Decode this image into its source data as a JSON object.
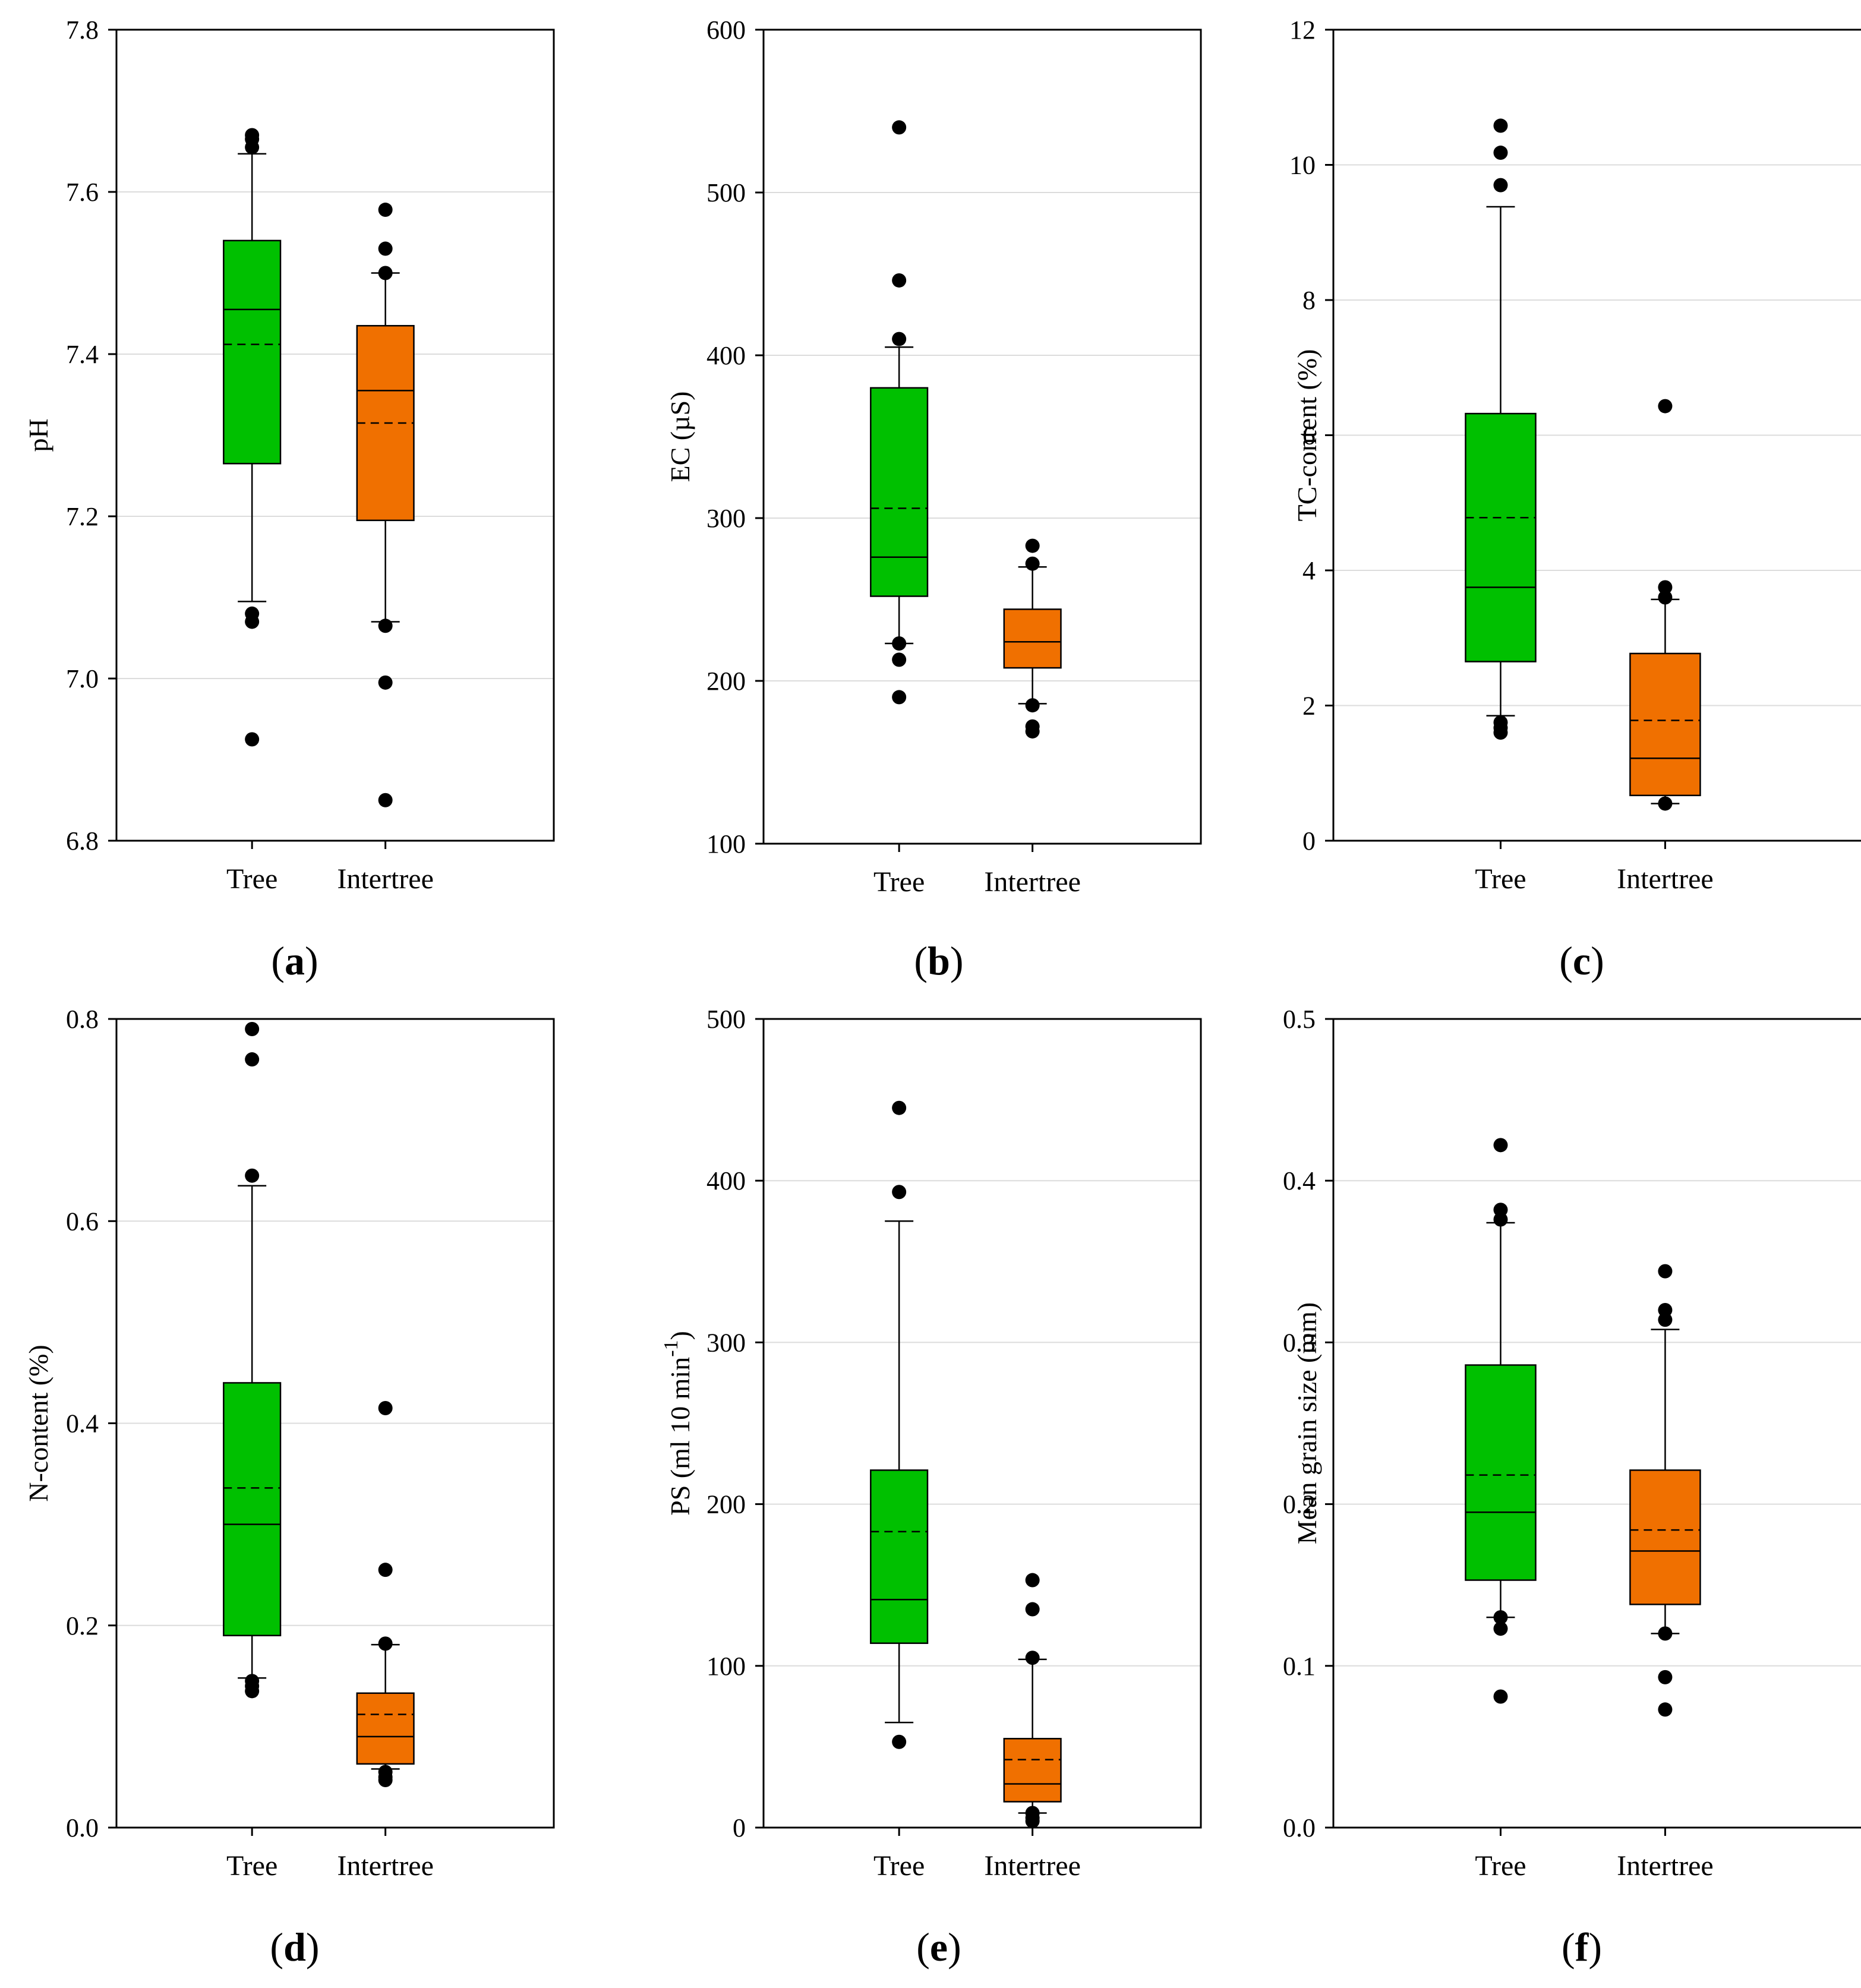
{
  "figure": {
    "colors": {
      "tree": "#00c000",
      "intertree": "#f07000",
      "gridline": "#dcdcdc",
      "frame": "#000000"
    },
    "categories": [
      "Tree",
      "Intertree"
    ]
  },
  "chart_data": [
    {
      "type": "box",
      "panel": "a",
      "panel_label": "(a)",
      "ylabel": "pH",
      "ylim": [
        6.8,
        7.8
      ],
      "yticks": [
        6.8,
        7.0,
        7.2,
        7.4,
        7.6,
        7.8
      ],
      "ytick_labels": [
        "6.8",
        "7.0",
        "7.2",
        "7.4",
        "7.6",
        "7.8"
      ],
      "series": [
        {
          "name": "Tree",
          "q1": 7.265,
          "median": 7.455,
          "mean": 7.412,
          "q3": 7.54,
          "whisker_low": 7.095,
          "whisker_high": 7.647,
          "outliers": [
            7.67,
            7.665,
            7.655,
            7.08,
            7.07,
            6.925
          ]
        },
        {
          "name": "Intertree",
          "q1": 7.195,
          "median": 7.355,
          "mean": 7.315,
          "q3": 7.435,
          "whisker_low": 7.07,
          "whisker_high": 7.5,
          "outliers": [
            7.578,
            7.53,
            7.5,
            7.065,
            6.995,
            6.85
          ]
        }
      ]
    },
    {
      "type": "box",
      "panel": "b",
      "panel_label": "(b)",
      "ylabel": "EC (µS)",
      "ylim": [
        100,
        600
      ],
      "yticks": [
        100,
        200,
        300,
        400,
        500,
        600
      ],
      "ytick_labels": [
        "100",
        "200",
        "300",
        "400",
        "500",
        "600"
      ],
      "series": [
        {
          "name": "Tree",
          "q1": 252,
          "median": 276,
          "mean": 306,
          "q3": 380,
          "whisker_low": 223,
          "whisker_high": 405,
          "outliers": [
            540,
            446,
            410,
            223,
            213,
            190
          ]
        },
        {
          "name": "Intertree",
          "q1": 208,
          "median": 224,
          "mean": 224,
          "q3": 244,
          "whisker_low": 186,
          "whisker_high": 270,
          "outliers": [
            283,
            272,
            185,
            172,
            169
          ]
        }
      ]
    },
    {
      "type": "box",
      "panel": "c",
      "panel_label": "(c)",
      "ylabel": "TC-content (%)",
      "ylim": [
        0,
        12
      ],
      "yticks": [
        0,
        2,
        4,
        6,
        8,
        10,
        12
      ],
      "ytick_labels": [
        "0",
        "2",
        "4",
        "6",
        "8",
        "10",
        "12"
      ],
      "series": [
        {
          "name": "Tree",
          "q1": 2.65,
          "median": 3.75,
          "mean": 4.78,
          "q3": 6.32,
          "whisker_low": 1.85,
          "whisker_high": 9.38,
          "outliers": [
            10.58,
            10.18,
            9.7,
            1.75,
            1.67,
            1.6
          ]
        },
        {
          "name": "Intertree",
          "q1": 0.67,
          "median": 1.22,
          "mean": 1.78,
          "q3": 2.77,
          "whisker_low": 0.55,
          "whisker_high": 3.57,
          "outliers": [
            6.43,
            3.75,
            3.6,
            0.55
          ]
        }
      ]
    },
    {
      "type": "box",
      "panel": "d",
      "panel_label": "(d)",
      "ylabel": "N-content (%)",
      "ylim": [
        0.0,
        0.8
      ],
      "yticks": [
        0.0,
        0.2,
        0.4,
        0.6,
        0.8
      ],
      "ytick_labels": [
        "0.0",
        "0.2",
        "0.4",
        "0.6",
        "0.8"
      ],
      "series": [
        {
          "name": "Tree",
          "q1": 0.19,
          "median": 0.3,
          "mean": 0.336,
          "q3": 0.44,
          "whisker_low": 0.148,
          "whisker_high": 0.635,
          "outliers": [
            0.79,
            0.76,
            0.645,
            0.145,
            0.14,
            0.135
          ]
        },
        {
          "name": "Intertree",
          "q1": 0.063,
          "median": 0.09,
          "mean": 0.112,
          "q3": 0.133,
          "whisker_low": 0.058,
          "whisker_high": 0.181,
          "outliers": [
            0.415,
            0.255,
            0.182,
            0.055,
            0.05,
            0.047
          ]
        }
      ]
    },
    {
      "type": "box",
      "panel": "e",
      "panel_label": "(e)",
      "ylabel": "PS (ml 10 min",
      "ylabel_superscript": "-1",
      "ylabel_suffix": ")",
      "ylim": [
        0,
        500
      ],
      "yticks": [
        0,
        100,
        200,
        300,
        400,
        500
      ],
      "ytick_labels": [
        "0",
        "100",
        "200",
        "300",
        "400",
        "500"
      ],
      "series": [
        {
          "name": "Tree",
          "q1": 114,
          "median": 141,
          "mean": 183,
          "q3": 221,
          "whisker_low": 65,
          "whisker_high": 375,
          "outliers": [
            445,
            393,
            53
          ]
        },
        {
          "name": "Intertree",
          "q1": 16,
          "median": 27,
          "mean": 42,
          "q3": 55,
          "whisker_low": 9,
          "whisker_high": 104,
          "outliers": [
            153,
            135,
            105,
            9,
            6,
            4
          ]
        }
      ]
    },
    {
      "type": "box",
      "panel": "f",
      "panel_label": "(f)",
      "ylabel": "Mean grain size (mm)",
      "ylim": [
        0.0,
        0.5
      ],
      "yticks": [
        0.0,
        0.1,
        0.2,
        0.3,
        0.4,
        0.5
      ],
      "ytick_labels": [
        "0.0",
        "0.1",
        "0.2",
        "0.3",
        "0.4",
        "0.5"
      ],
      "series": [
        {
          "name": "Tree",
          "q1": 0.153,
          "median": 0.195,
          "mean": 0.218,
          "q3": 0.286,
          "whisker_low": 0.13,
          "whisker_high": 0.374,
          "outliers": [
            0.422,
            0.382,
            0.376,
            0.13,
            0.123,
            0.081
          ]
        },
        {
          "name": "Intertree",
          "q1": 0.138,
          "median": 0.171,
          "mean": 0.184,
          "q3": 0.221,
          "whisker_low": 0.12,
          "whisker_high": 0.308,
          "outliers": [
            0.344,
            0.32,
            0.314,
            0.12,
            0.093,
            0.073
          ]
        }
      ]
    }
  ]
}
